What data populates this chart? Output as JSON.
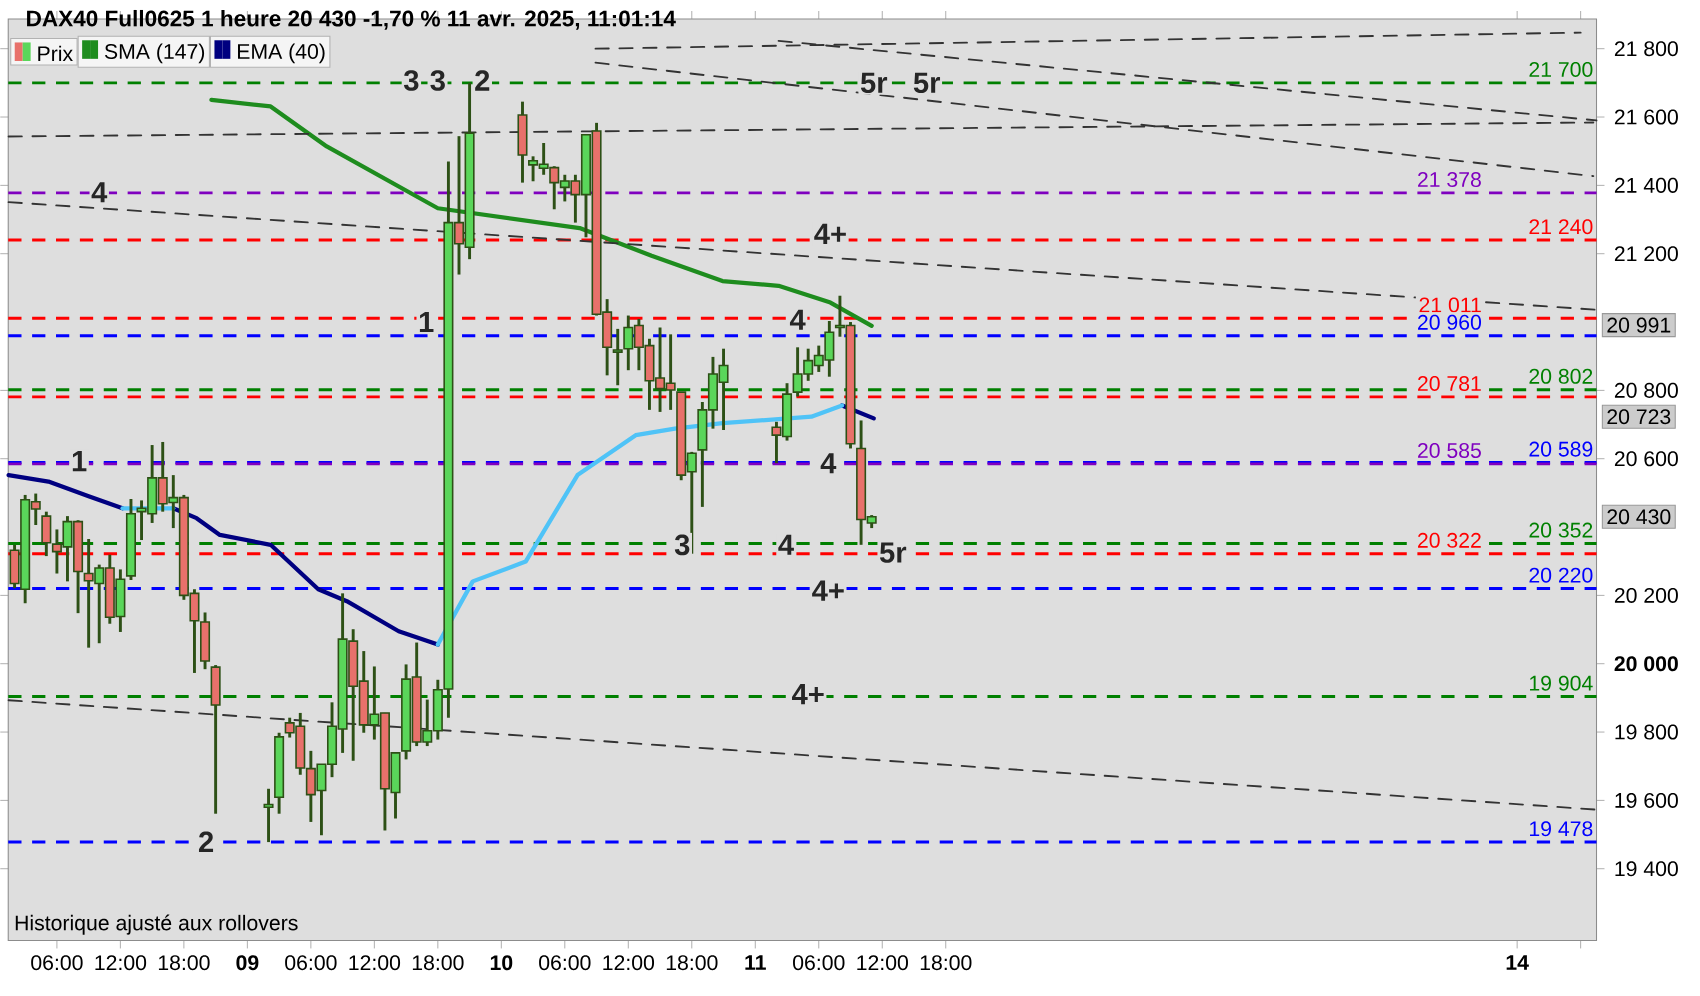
{
  "chart_data": {
    "type": "candlestick",
    "title": "DAX40 Full0625 1 heure 20 430 -1,70 % 11 avr. 2025, 11:01:14",
    "xlim": [
      "2025-04-08T01:24",
      "2025-04-14T07:30"
    ],
    "ylim": [
      19190,
      21887
    ],
    "xticks": [
      {
        "value": "2025-04-08T06:00",
        "label": "06:00"
      },
      {
        "value": "2025-04-08T12:00",
        "label": "12:00"
      },
      {
        "value": "2025-04-08T18:00",
        "label": "18:00"
      },
      {
        "value": "2025-04-09",
        "label": "**09**"
      },
      {
        "value": "2025-04-09T06:00",
        "label": "06:00"
      },
      {
        "value": "2025-04-09T12:00",
        "label": "12:00"
      },
      {
        "value": "2025-04-09T18:00",
        "label": "18:00"
      },
      {
        "value": "2025-04-10",
        "label": "**10**"
      },
      {
        "value": "2025-04-10T06:00",
        "label": "06:00"
      },
      {
        "value": "2025-04-10T12:00",
        "label": "12:00"
      },
      {
        "value": "2025-04-10T18:00",
        "label": "18:00"
      },
      {
        "value": "2025-04-11",
        "label": "**11**"
      },
      {
        "value": "2025-04-11T06:00",
        "label": "06:00"
      },
      {
        "value": "2025-04-11T12:00",
        "label": "12:00"
      },
      {
        "value": "2025-04-11T18:00",
        "label": "18:00"
      },
      {
        "value": "2025-04-14",
        "label": "**14**"
      },
      {
        "value": "2025-04-14T06:00",
        "label": null
      }
    ],
    "yticks": [
      {
        "value": 19400,
        "label": "19 400"
      },
      {
        "value": 19600,
        "label": "19 600"
      },
      {
        "value": 19800,
        "label": "19 800"
      },
      {
        "value": 20000,
        "label": "**20 000**"
      },
      {
        "value": 20200,
        "label": "20 200"
      },
      {
        "value": 20600,
        "label": "20 600"
      },
      {
        "value": 20800,
        "label": "20 800"
      },
      {
        "value": 21200,
        "label": "21 200"
      },
      {
        "value": 21400,
        "label": "21 400"
      },
      {
        "value": 21600,
        "label": "21 600"
      },
      {
        "value": 21800,
        "label": "21 800"
      }
    ],
    "legend": "top left",
    "series": [
      {
        "name": "Prix",
        "type": "candlestick",
        "x": [
          "2025-04-08T02:00",
          "2025-04-08T03:00",
          "2025-04-08T04:00",
          "2025-04-08T05:00",
          "2025-04-08T06:00",
          "2025-04-08T07:00",
          "2025-04-08T08:00",
          "2025-04-08T09:00",
          "2025-04-08T10:00",
          "2025-04-08T11:00",
          "2025-04-08T12:00",
          "2025-04-08T13:00",
          "2025-04-08T14:00",
          "2025-04-08T15:00",
          "2025-04-08T16:00",
          "2025-04-08T17:00",
          "2025-04-08T18:00",
          "2025-04-08T19:00",
          "2025-04-08T20:00",
          "2025-04-08T21:00",
          "2025-04-09T02:00",
          "2025-04-09T03:00",
          "2025-04-09T04:00",
          "2025-04-09T05:00",
          "2025-04-09T06:00",
          "2025-04-09T07:00",
          "2025-04-09T08:00",
          "2025-04-09T09:00",
          "2025-04-09T10:00",
          "2025-04-09T11:00",
          "2025-04-09T12:00",
          "2025-04-09T13:00",
          "2025-04-09T14:00",
          "2025-04-09T15:00",
          "2025-04-09T16:00",
          "2025-04-09T17:00",
          "2025-04-09T18:00",
          "2025-04-09T19:00",
          "2025-04-09T20:00",
          "2025-04-09T21:00",
          "2025-04-10T02:00",
          "2025-04-10T03:00",
          "2025-04-10T04:00",
          "2025-04-10T05:00",
          "2025-04-10T06:00",
          "2025-04-10T07:00",
          "2025-04-10T08:00",
          "2025-04-10T09:00",
          "2025-04-10T10:00",
          "2025-04-10T11:00",
          "2025-04-10T12:00",
          "2025-04-10T13:00",
          "2025-04-10T14:00",
          "2025-04-10T15:00",
          "2025-04-10T16:00",
          "2025-04-10T17:00",
          "2025-04-10T18:00",
          "2025-04-10T19:00",
          "2025-04-10T20:00",
          "2025-04-10T21:00",
          "2025-04-11T02:00",
          "2025-04-11T03:00",
          "2025-04-11T04:00",
          "2025-04-11T05:00",
          "2025-04-11T06:00",
          "2025-04-11T07:00",
          "2025-04-11T08:00",
          "2025-04-11T09:00",
          "2025-04-11T10:00",
          "2025-04-11T11:00"
        ],
        "ohlc": [
          [
            20332,
            20348,
            20221,
            20235
          ],
          [
            20218,
            20494,
            20177,
            20480
          ],
          [
            20474,
            20498,
            20406,
            20453
          ],
          [
            20432,
            20445,
            20315,
            20354
          ],
          [
            20350,
            20393,
            20264,
            20328
          ],
          [
            20342,
            20432,
            20241,
            20416
          ],
          [
            20416,
            20420,
            20148,
            20270
          ],
          [
            20264,
            20365,
            20047,
            20243
          ],
          [
            20235,
            20290,
            20060,
            20280
          ],
          [
            20280,
            20319,
            20117,
            20136
          ],
          [
            20138,
            20276,
            20093,
            20247
          ],
          [
            20257,
            20482,
            20245,
            20439
          ],
          [
            20445,
            20478,
            20362,
            20455
          ],
          [
            20439,
            20640,
            20412,
            20544
          ],
          [
            20544,
            20649,
            20445,
            20468
          ],
          [
            20472,
            20552,
            20397,
            20486
          ],
          [
            20486,
            20494,
            20187,
            20200
          ],
          [
            20206,
            20218,
            19973,
            20126
          ],
          [
            20122,
            20150,
            19984,
            20008
          ],
          [
            19990,
            19996,
            19561,
            19879
          ],
          [
            19580,
            19634,
            19478,
            19588
          ],
          [
            19609,
            19798,
            19561,
            19786
          ],
          [
            19827,
            19842,
            19784,
            19798
          ],
          [
            19817,
            19856,
            19675,
            19695
          ],
          [
            19693,
            19745,
            19537,
            19617
          ],
          [
            19629,
            19706,
            19498,
            19706
          ],
          [
            19706,
            19887,
            19668,
            19817
          ],
          [
            19809,
            20206,
            19739,
            20072
          ],
          [
            20066,
            20101,
            19716,
            19934
          ],
          [
            19949,
            20037,
            19798,
            19821
          ],
          [
            19821,
            19992,
            19778,
            19852
          ],
          [
            19856,
            19856,
            19512,
            19634
          ],
          [
            19623,
            19739,
            19547,
            19739
          ],
          [
            19745,
            19998,
            19720,
            19955
          ],
          [
            19961,
            20062,
            19759,
            19771
          ],
          [
            19771,
            19895,
            19759,
            19804
          ],
          [
            19804,
            19953,
            19778,
            19924
          ],
          [
            19926,
            21470,
            19842,
            21291
          ],
          [
            21291,
            21544,
            21139,
            21229
          ],
          [
            21219,
            21700,
            21184,
            21553
          ],
          [
            21606,
            21645,
            21408,
            21489
          ],
          [
            21460,
            21485,
            21412,
            21472
          ],
          [
            21450,
            21524,
            21431,
            21462
          ],
          [
            21452,
            21456,
            21330,
            21408
          ],
          [
            21394,
            21431,
            21353,
            21413
          ],
          [
            21413,
            21431,
            21291,
            21373
          ],
          [
            21373,
            21548,
            21248,
            21548
          ],
          [
            21559,
            21583,
            21019,
            21023
          ],
          [
            21029,
            21067,
            20844,
            20926
          ],
          [
            20912,
            20980,
            20815,
            20918
          ],
          [
            20922,
            21019,
            20859,
            20984
          ],
          [
            20990,
            21009,
            20859,
            20926
          ],
          [
            20931,
            20951,
            20743,
            20828
          ],
          [
            20836,
            20984,
            20737,
            20805
          ],
          [
            20821,
            20964,
            20743,
            20801
          ],
          [
            20795,
            20795,
            20537,
            20552
          ],
          [
            20562,
            20620,
            20322,
            20616
          ],
          [
            20626,
            20766,
            20459,
            20743
          ],
          [
            20743,
            20898,
            20688,
            20848
          ],
          [
            20824,
            20922,
            20684,
            20873
          ],
          [
            20692,
            20708,
            20587,
            20669
          ],
          [
            20665,
            20821,
            20653,
            20789
          ],
          [
            20795,
            20926,
            20782,
            20848
          ],
          [
            20848,
            20922,
            20828,
            20887
          ],
          [
            20873,
            20931,
            20854,
            20902
          ],
          [
            20889,
            21003,
            20840,
            20970
          ],
          [
            20984,
            21077,
            20957,
            20990
          ],
          [
            20990,
            21000,
            20630,
            20644
          ],
          [
            20630,
            20712,
            20348,
            20422
          ],
          [
            20412,
            20435,
            20397,
            20430
          ]
        ],
        "colors": [
          "#e8716b",
          "#5ad65a",
          "#e8716b",
          "#e8716b",
          "#e8716b",
          "#5ad65a",
          "#e8716b",
          "#e8716b",
          "#5ad65a",
          "#e8716b",
          "#5ad65a",
          "#5ad65a",
          "#5ad65a",
          "#5ad65a",
          "#e8716b",
          "#5ad65a",
          "#e8716b",
          "#e8716b",
          "#e8716b",
          "#e8716b",
          "#5ad65a",
          "#5ad65a",
          "#e8716b",
          "#e8716b",
          "#e8716b",
          "#5ad65a",
          "#5ad65a",
          "#5ad65a",
          "#e8716b",
          "#e8716b",
          "#5ad65a",
          "#e8716b",
          "#5ad65a",
          "#5ad65a",
          "#e8716b",
          "#5ad65a",
          "#5ad65a",
          "#5ad65a",
          "#e8716b",
          "#5ad65a",
          "#e8716b",
          "#5ad65a",
          "#5ad65a",
          "#e8716b",
          "#5ad65a",
          "#e8716b",
          "#5ad65a",
          "#e8716b",
          "#e8716b",
          "#5ad65a",
          "#5ad65a",
          "#e8716b",
          "#e8716b",
          "#e8716b",
          "#e8716b",
          "#e8716b",
          "#5ad65a",
          "#5ad65a",
          "#5ad65a",
          "#5ad65a",
          "#e8716b",
          "#5ad65a",
          "#5ad65a",
          "#5ad65a",
          "#5ad65a",
          "#5ad65a",
          "#5ad65a",
          "#e8716b",
          "#e8716b",
          "#5ad65a"
        ]
      },
      {
        "name": "SMA (147)",
        "type": "line",
        "color": "#1e8c1e",
        "x": [
          "2025-04-08T20:36",
          "2025-04-09T02:12",
          "2025-04-09T07:30",
          "2025-04-09T18:00",
          "2025-04-10T07:24",
          "2025-04-10T14:12",
          "2025-04-10T20:54",
          "2025-04-11T02:12",
          "2025-04-11T07:06",
          "2025-04-11T11:00"
        ],
        "values": [
          21650,
          21631,
          21514,
          21333,
          21275,
          21194,
          21120,
          21106,
          21057,
          20989
        ]
      },
      {
        "name": "EMA (40)",
        "type": "line",
        "color": "#000080",
        "x": [
          "2025-04-08T01:26",
          "2025-04-08T05:12",
          "2025-04-08T09:00",
          "2025-04-08T12:12"
        ],
        "values": [
          20552,
          20533,
          20490,
          20455
        ]
      },
      {
        "type": "line",
        "color": "#000080",
        "x": [
          "2025-04-08T17:00",
          "2025-04-08T19:12",
          "2025-04-08T21:24",
          "2025-04-09T02:12",
          "2025-04-09T06:42",
          "2025-04-09T09:24",
          "2025-04-09T14:18",
          "2025-04-09T18:00"
        ],
        "values": [
          20455,
          20426,
          20377,
          20348,
          20218,
          20183,
          20095,
          20056
        ]
      },
      {
        "type": "line",
        "color": "#000080",
        "x": [
          "2025-04-11T08:12",
          "2025-04-11T11:12"
        ],
        "values": [
          20756,
          20718
        ]
      },
      {
        "type": "line",
        "color": "#4fc3f7",
        "x": [
          "2025-04-08T12:12",
          "2025-04-08T14:36",
          "2025-04-08T17:00"
        ],
        "values": [
          20455,
          20455,
          20455
        ]
      },
      {
        "type": "line",
        "color": "#4fc3f7",
        "x": [
          "2025-04-09T18:00",
          "2025-04-09T21:18",
          "2025-04-10T02:18",
          "2025-04-10T07:12",
          "2025-04-10T12:42",
          "2025-04-10T16:24",
          "2025-04-10T20:54",
          "2025-04-11T05:18",
          "2025-04-11T08:12"
        ],
        "values": [
          20056,
          20241,
          20299,
          20552,
          20669,
          20688,
          20704,
          20723,
          20756
        ]
      },
      {
        "type": "line",
        "color": "#333333",
        "line_style": "dashed",
        "x": [
          "2025-04-08T01:26",
          "2025-04-14T07:30"
        ],
        "values": [
          21351,
          21036
        ]
      },
      {
        "type": "line",
        "color": "#333333",
        "line_style": "dashed",
        "x": [
          "2025-04-08T01:26",
          "2025-04-14T07:12"
        ],
        "values": [
          21543,
          21584
        ]
      },
      {
        "type": "line",
        "color": "#333333",
        "line_style": "dashed",
        "x": [
          "2025-04-10T08:54",
          "2025-04-14T06:00"
        ],
        "values": [
          21800,
          21847
        ]
      },
      {
        "type": "line",
        "color": "#333333",
        "line_style": "dashed",
        "x": [
          "2025-04-11T02:12",
          "2025-04-14T07:30"
        ],
        "values": [
          21823,
          21590
        ]
      },
      {
        "type": "line",
        "color": "#333333",
        "line_style": "dashed",
        "x": [
          "2025-04-10T08:54",
          "2025-04-14T07:12"
        ],
        "values": [
          21759,
          21427
        ]
      },
      {
        "type": "line",
        "color": "#333333",
        "line_style": "dashed",
        "x": [
          "2025-04-08T01:26",
          "2025-04-14T07:30"
        ],
        "values": [
          19893,
          19573
        ]
      }
    ],
    "ref_lines": [
      {
        "axis": "y",
        "value": 21700,
        "label": "21 700",
        "color": "#008000",
        "line_style": "dashed"
      },
      {
        "axis": "y",
        "value": 21378,
        "label": "21 378",
        "color": "#7f00bf",
        "line_style": "dashed"
      },
      {
        "axis": "y",
        "value": 21240,
        "label": "21 240",
        "color": "#ff0000",
        "line_style": "dashed"
      },
      {
        "axis": "y",
        "value": 21011,
        "label": "21 011",
        "color": "#ff0000",
        "line_style": "dashed"
      },
      {
        "axis": "y",
        "value": 20960,
        "label": "20 960",
        "color": "#0000ff",
        "line_style": "dashed"
      },
      {
        "axis": "y",
        "value": 20802,
        "label": "20 802",
        "color": "#008000",
        "line_style": "dashed"
      },
      {
        "axis": "y",
        "value": 20781,
        "label": "20 781",
        "color": "#ff0000",
        "line_style": "dashed"
      },
      {
        "axis": "y",
        "value": 20589,
        "label": "20 589",
        "color": "#0000ff",
        "line_style": "dashed"
      },
      {
        "axis": "y",
        "value": 20585,
        "label": "20 585",
        "color": "#7f00bf",
        "line_style": "dashed"
      },
      {
        "axis": "y",
        "value": 20352,
        "label": "20 352",
        "color": "#008000",
        "line_style": "dashed"
      },
      {
        "axis": "y",
        "value": 20322,
        "label": "20 322",
        "color": "#ff0000",
        "line_style": "dashed"
      },
      {
        "axis": "y",
        "value": 20220,
        "label": "20 220",
        "color": "#0000ff",
        "line_style": "dashed"
      },
      {
        "axis": "y",
        "value": 19904,
        "label": "19 904",
        "color": "#008000",
        "line_style": "dashed"
      },
      {
        "axis": "y",
        "value": 19478,
        "label": "19 478",
        "color": "#0000ff",
        "line_style": "dashed"
      }
    ],
    "annotations": [
      {
        "text": "3",
        "x": "2025-04-09T15:30",
        "y": 21707
      },
      {
        "text": "3",
        "x": "2025-04-09T18:00",
        "y": 21707
      },
      {
        "text": "2",
        "x": "2025-04-09T22:12",
        "y": 21707
      },
      {
        "text": "1",
        "x": "2025-04-09T16:54",
        "y": 21000
      },
      {
        "text": "4",
        "x": "2025-04-08T10:00",
        "y": 21380
      },
      {
        "text": "1",
        "x": "2025-04-08T08:06",
        "y": 20593
      },
      {
        "text": "2",
        "x": "2025-04-08T20:06",
        "y": 19479
      },
      {
        "text": "5r",
        "x": "2025-04-11T11:12",
        "y": 21700
      },
      {
        "text": "5r",
        "x": "2025-04-11T16:12",
        "y": 21700
      },
      {
        "text": "4+",
        "x": "2025-04-11T07:06",
        "y": 21258
      },
      {
        "text": "4",
        "x": "2025-04-11T04:00",
        "y": 21007
      },
      {
        "text": "4",
        "x": "2025-04-11T06:54",
        "y": 20587
      },
      {
        "text": "3",
        "x": "2025-04-10T17:06",
        "y": 20348
      },
      {
        "text": "4",
        "x": "2025-04-11T02:54",
        "y": 20348
      },
      {
        "text": "5r",
        "x": "2025-04-11T13:00",
        "y": 20325
      },
      {
        "text": "4+",
        "x": "2025-04-11T06:54",
        "y": 20214
      },
      {
        "text": "4+",
        "x": "2025-04-11T05:00",
        "y": 19911
      },
      {
        "text": "20 991",
        "y": 20991
      },
      {
        "text": "20 723",
        "y": 20723
      },
      {
        "text": "20 430",
        "y": 20430
      },
      "Historique ajusté aux rollovers"
    ]
  }
}
